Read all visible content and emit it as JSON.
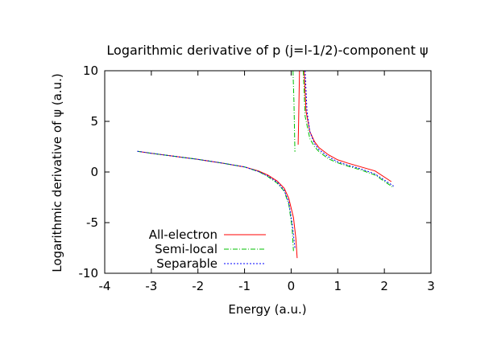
{
  "chart_data": {
    "type": "line",
    "title": "Logarithmic derivative of p (j=l-1/2)-component ψ",
    "xlabel": "Energy (a.u.)",
    "ylabel": "Logarithmic derivative of ψ (a.u.)",
    "xlim": [
      -4,
      3
    ],
    "ylim": [
      -10,
      10
    ],
    "xticks": [
      -4,
      -3,
      -2,
      -1,
      0,
      1,
      2,
      3
    ],
    "yticks": [
      -10,
      -5,
      0,
      5,
      10
    ],
    "xtick_labels": [
      "-4",
      "-3",
      "-2",
      "-1",
      "0",
      "1",
      "2",
      "3"
    ],
    "ytick_labels": [
      "-10",
      "-5",
      "0",
      "5",
      "10"
    ],
    "grid": false,
    "legend_position": "bottom-left",
    "series": [
      {
        "name": "All-electron",
        "color": "#ff0000",
        "dash": "solid",
        "segments": [
          [
            [
              -3.3,
              2.05
            ],
            [
              -3.0,
              1.85
            ],
            [
              -2.5,
              1.55
            ],
            [
              -2.0,
              1.25
            ],
            [
              -1.5,
              0.9
            ],
            [
              -1.0,
              0.5
            ],
            [
              -0.7,
              0.1
            ],
            [
              -0.5,
              -0.3
            ],
            [
              -0.3,
              -0.9
            ],
            [
              -0.15,
              -1.6
            ],
            [
              -0.05,
              -2.6
            ],
            [
              0.05,
              -4.5
            ],
            [
              0.1,
              -6.5
            ],
            [
              0.13,
              -8.5
            ]
          ],
          [
            [
              0.15,
              2.7
            ],
            [
              0.16,
              5.0
            ],
            [
              0.18,
              10.0
            ]
          ],
          [
            [
              0.28,
              10.0
            ],
            [
              0.32,
              6.0
            ],
            [
              0.4,
              4.0
            ],
            [
              0.5,
              3.0
            ],
            [
              0.6,
              2.4
            ],
            [
              0.8,
              1.7
            ],
            [
              1.0,
              1.2
            ],
            [
              1.2,
              0.9
            ],
            [
              1.5,
              0.5
            ],
            [
              1.8,
              0.1
            ],
            [
              2.15,
              -0.95
            ]
          ]
        ]
      },
      {
        "name": "Semi-local",
        "color": "#00c000",
        "dash": "dashdot",
        "segments": [
          [
            [
              -3.3,
              2.05
            ],
            [
              -3.0,
              1.85
            ],
            [
              -2.5,
              1.55
            ],
            [
              -2.0,
              1.25
            ],
            [
              -1.5,
              0.9
            ],
            [
              -1.0,
              0.5
            ],
            [
              -0.7,
              0.05
            ],
            [
              -0.5,
              -0.45
            ],
            [
              -0.3,
              -1.1
            ],
            [
              -0.15,
              -1.9
            ],
            [
              -0.05,
              -3.2
            ],
            [
              0.02,
              -5.5
            ],
            [
              0.05,
              -7.8
            ]
          ],
          [
            [
              0.04,
              10.0
            ],
            [
              0.06,
              7.0
            ],
            [
              0.08,
              2.0
            ]
          ],
          [
            [
              0.26,
              10.0
            ],
            [
              0.3,
              5.5
            ],
            [
              0.4,
              3.3
            ],
            [
              0.5,
              2.5
            ],
            [
              0.6,
              2.0
            ],
            [
              0.8,
              1.3
            ],
            [
              1.0,
              0.9
            ],
            [
              1.2,
              0.6
            ],
            [
              1.5,
              0.2
            ],
            [
              1.8,
              -0.3
            ],
            [
              2.2,
              -1.55
            ]
          ]
        ]
      },
      {
        "name": "Separable",
        "color": "#0000ff",
        "dash": "dotted",
        "segments": [
          [
            [
              -3.3,
              2.05
            ],
            [
              -3.0,
              1.85
            ],
            [
              -2.5,
              1.55
            ],
            [
              -2.0,
              1.25
            ],
            [
              -1.5,
              0.9
            ],
            [
              -1.0,
              0.5
            ],
            [
              -0.7,
              0.05
            ],
            [
              -0.5,
              -0.4
            ],
            [
              -0.3,
              -1.0
            ],
            [
              -0.15,
              -1.8
            ],
            [
              -0.05,
              -3.0
            ],
            [
              0.02,
              -5.0
            ],
            [
              0.08,
              -7.5
            ]
          ],
          [
            [
              0.3,
              10.0
            ],
            [
              0.34,
              6.0
            ],
            [
              0.4,
              4.0
            ],
            [
              0.5,
              2.8
            ],
            [
              0.6,
              2.2
            ],
            [
              0.8,
              1.5
            ],
            [
              1.0,
              1.0
            ],
            [
              1.2,
              0.7
            ],
            [
              1.5,
              0.3
            ],
            [
              1.8,
              -0.2
            ],
            [
              2.2,
              -1.4
            ]
          ]
        ]
      }
    ]
  }
}
